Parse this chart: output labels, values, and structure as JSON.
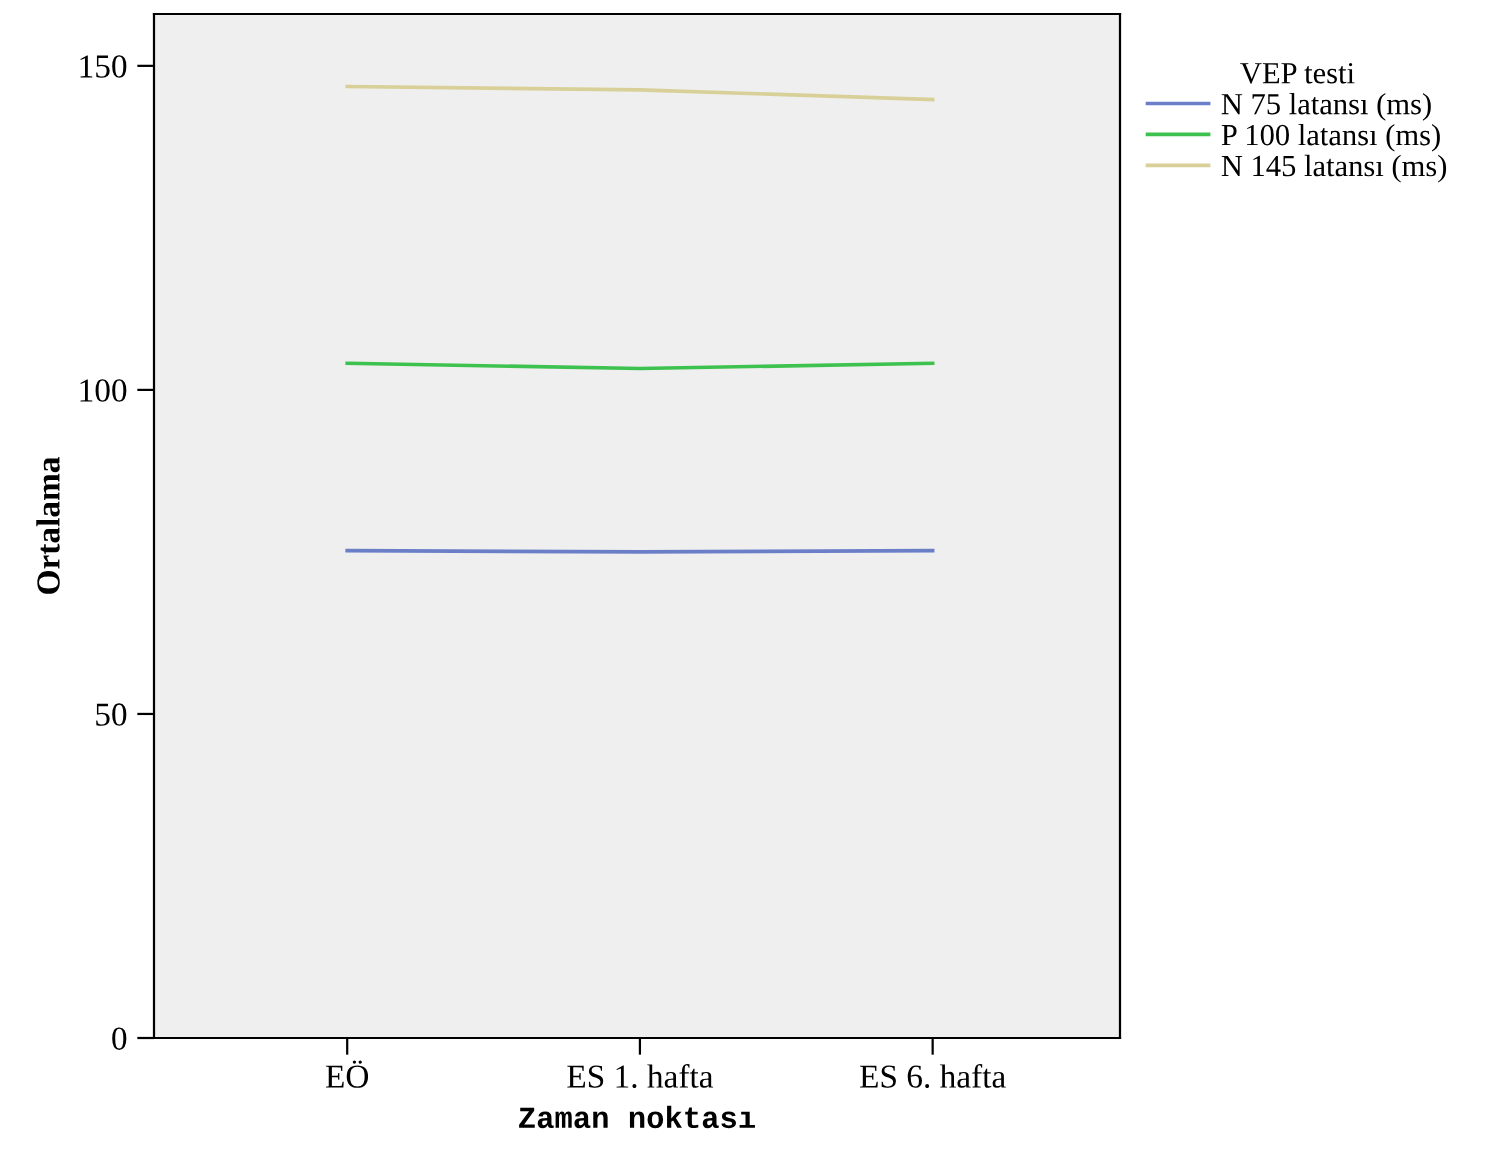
{
  "chart_data": {
    "type": "line",
    "xlabel": "Zaman noktası",
    "ylabel": "Ortalama",
    "legend_title": "VEP testi",
    "categories": [
      "EÖ",
      "ES 1. hafta",
      "ES 6. hafta"
    ],
    "series": [
      {
        "name": "N 75 latansı (ms)",
        "color": "#6b7fc8",
        "values": [
          75.2,
          75.0,
          75.2
        ]
      },
      {
        "name": "P 100 latansı (ms)",
        "color": "#3ec24f",
        "values": [
          104.1,
          103.3,
          104.1
        ]
      },
      {
        "name": "N 145 latansı (ms)",
        "color": "#d8d098",
        "values": [
          146.8,
          146.3,
          144.8
        ]
      }
    ],
    "ylim": [
      0,
      158
    ],
    "yticks": [
      0,
      50,
      100,
      150
    ],
    "grid": false,
    "legend": "right",
    "marker": "none",
    "line_style": "solid"
  }
}
